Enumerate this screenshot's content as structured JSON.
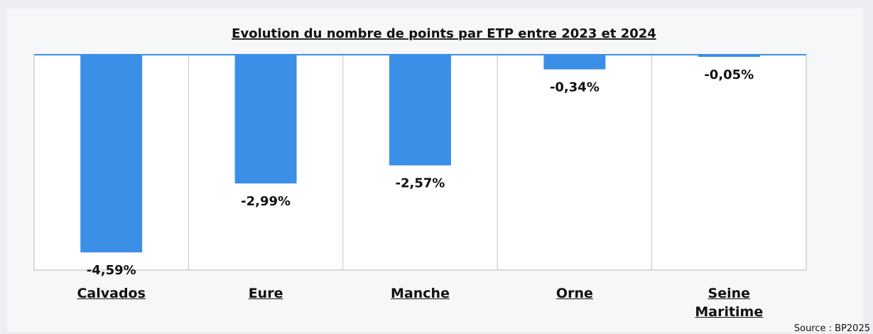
{
  "chart_data": {
    "type": "bar",
    "title": "Evolution du nombre de points par ETP entre 2023 et 2024",
    "categories": [
      "Calvados",
      "Eure",
      "Manche",
      "Orne",
      "Seine Maritime"
    ],
    "values": [
      -4.59,
      -2.99,
      -2.57,
      -0.34,
      -0.05
    ],
    "value_labels": [
      "-4,59%",
      "-2,99%",
      "-2,57%",
      "-0,34%",
      "-0,05%"
    ],
    "color": "#3b8fe6",
    "ylim": [
      -5,
      0
    ],
    "source": "Source : BP2025"
  }
}
